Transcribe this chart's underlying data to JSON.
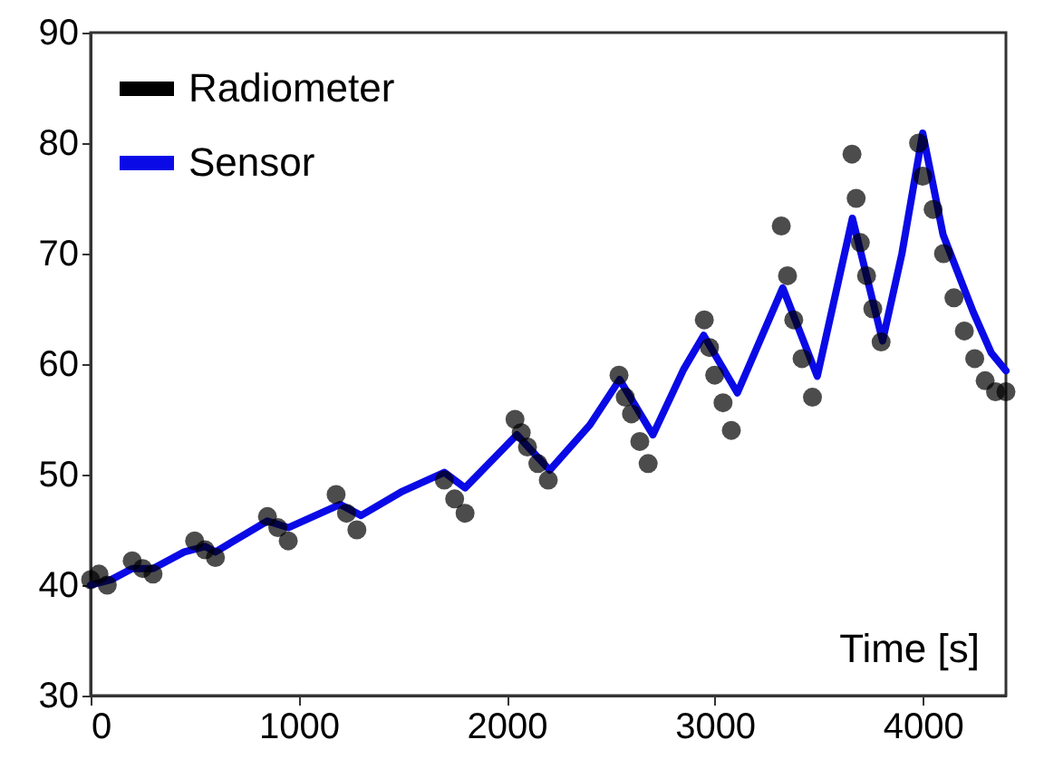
{
  "chart_data": {
    "type": "line",
    "xlabel": "Time [s]",
    "xlim": [
      0,
      4400
    ],
    "ylim": [
      30,
      90
    ],
    "xticks": [
      0,
      1000,
      2000,
      3000,
      4000
    ],
    "yticks": [
      30,
      40,
      50,
      60,
      70,
      80,
      90
    ],
    "legend": "top left",
    "series": [
      {
        "name": "Radiometer",
        "type": "scatter",
        "marker": "circle",
        "color": "#000000",
        "x": [
          0,
          40,
          80,
          200,
          250,
          300,
          500,
          550,
          600,
          850,
          900,
          950,
          1180,
          1230,
          1280,
          1700,
          1750,
          1800,
          2040,
          2070,
          2100,
          2150,
          2200,
          2540,
          2570,
          2600,
          2640,
          2680,
          2950,
          2975,
          3000,
          3040,
          3080,
          3320,
          3350,
          3380,
          3420,
          3470,
          3660,
          3680,
          3700,
          3730,
          3760,
          3800,
          3980,
          4000,
          4050,
          4100,
          4150,
          4200,
          4250,
          4300,
          4350,
          4400
        ],
        "values": [
          40.5,
          41,
          40,
          42.2,
          41.5,
          41,
          44,
          43.2,
          42.5,
          46.2,
          45.2,
          44,
          48.2,
          46.5,
          45,
          49.5,
          47.8,
          46.5,
          55,
          53.8,
          52.5,
          51,
          49.5,
          59,
          57,
          55.5,
          53,
          51,
          64,
          61.5,
          59,
          56.5,
          54,
          72.5,
          68,
          64,
          60.5,
          57,
          79,
          75,
          71,
          68,
          65,
          62,
          80,
          77,
          74,
          70,
          66,
          63,
          60.5,
          58.5,
          57.5,
          57.5
        ]
      },
      {
        "name": "Sensor",
        "color": "#0a0ae6",
        "x": [
          0,
          100,
          200,
          300,
          450,
          550,
          600,
          850,
          950,
          1200,
          1300,
          1500,
          1700,
          1800,
          2049,
          2207,
          2400,
          2543,
          2703,
          2850,
          2947,
          3109,
          3327,
          3493,
          3662,
          3807,
          3900,
          4000,
          4098,
          4243,
          4330,
          4400
        ],
        "values": [
          40,
          40.5,
          41.5,
          41.5,
          43,
          43.5,
          43,
          45.8,
          45.2,
          47.3,
          46.3,
          48.5,
          50.2,
          48.8,
          53.6,
          50.4,
          54.5,
          58.6,
          53.6,
          59.5,
          62.6,
          57.4,
          66.9,
          58.9,
          73.2,
          62.1,
          70,
          80.9,
          71.7,
          64.7,
          61,
          59.4
        ]
      }
    ]
  }
}
